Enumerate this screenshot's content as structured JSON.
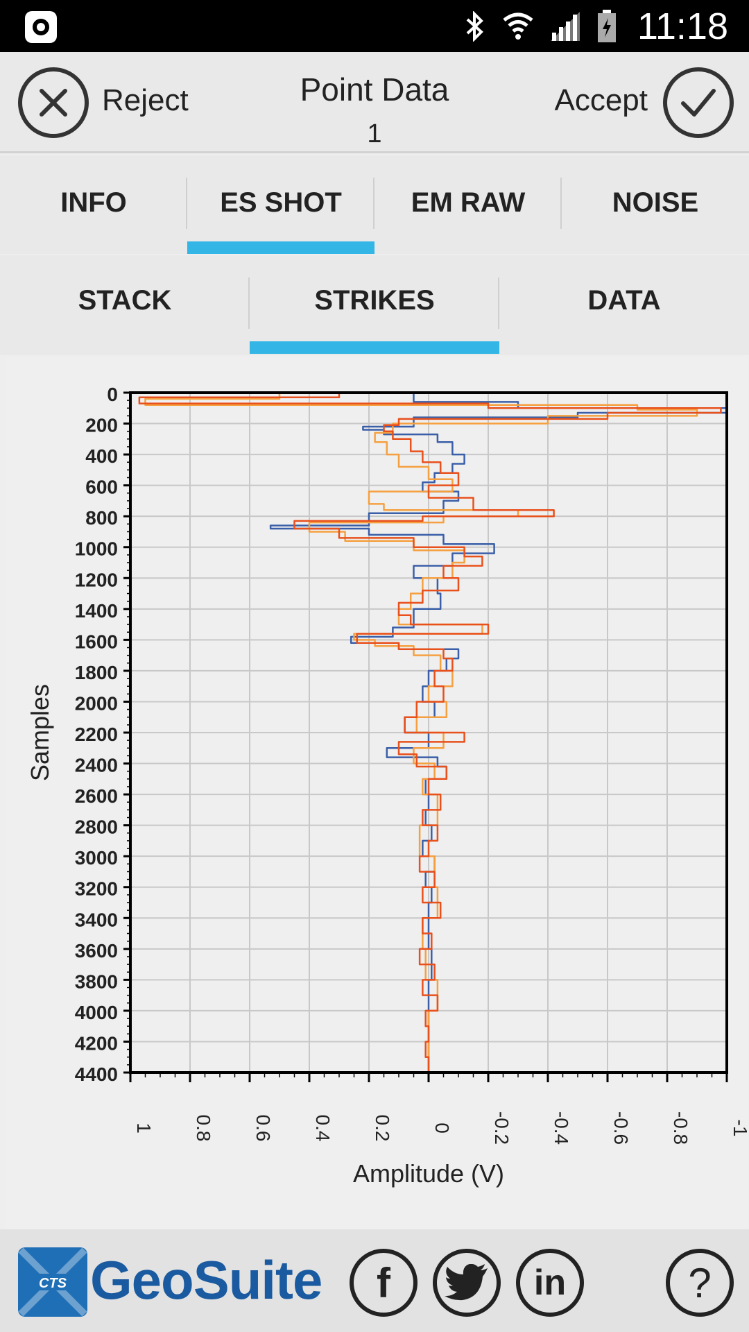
{
  "status_bar": {
    "time": "11:18",
    "icons": [
      "app-icon",
      "bluetooth-icon",
      "wifi-icon",
      "signal-icon",
      "battery-icon"
    ]
  },
  "header": {
    "reject_label": "Reject",
    "title": "Point Data",
    "subtitle": "1",
    "accept_label": "Accept"
  },
  "tabs_primary": [
    {
      "label": "INFO",
      "active": false
    },
    {
      "label": "ES SHOT",
      "active": true
    },
    {
      "label": "EM RAW",
      "active": false
    },
    {
      "label": "NOISE",
      "active": false
    }
  ],
  "tabs_secondary": [
    {
      "label": "STACK",
      "active": false
    },
    {
      "label": "STRIKES",
      "active": true
    },
    {
      "label": "DATA",
      "active": false
    }
  ],
  "chart_data": {
    "type": "line",
    "orientation": "vertical-samples",
    "title": "",
    "xlabel": "Amplitude (V)",
    "ylabel": "Samples",
    "xlim": [
      1,
      -1
    ],
    "ylim": [
      0,
      4400
    ],
    "x_ticks": [
      "1",
      "0.8",
      "0.6",
      "0.4",
      "0.2",
      "0",
      "-0.2",
      "-0.4",
      "-0.6",
      "-0.8",
      "-1"
    ],
    "y_ticks": [
      "0",
      "200",
      "400",
      "600",
      "800",
      "1000",
      "1200",
      "1400",
      "1600",
      "1800",
      "2000",
      "2200",
      "2400",
      "2600",
      "2800",
      "3000",
      "3200",
      "3400",
      "3600",
      "3800",
      "4000",
      "4200",
      "4400"
    ],
    "grid": true,
    "series": [
      {
        "color": "#3a5fa8",
        "samples": [
          0,
          60,
          100,
          130,
          160,
          220,
          240,
          270,
          320,
          400,
          460,
          520,
          580,
          640,
          700,
          780,
          860,
          880,
          920,
          980,
          1040,
          1120,
          1200,
          1300,
          1400,
          1520,
          1580,
          1620,
          1660,
          1720,
          1800,
          1900,
          2000,
          2100,
          2200,
          2300,
          2360,
          2420,
          2500,
          2600,
          2700,
          2800,
          2900,
          3000,
          3100,
          3200,
          3300,
          3400,
          3600,
          3800,
          4000,
          4200,
          4400
        ],
        "values": [
          0.0,
          0.05,
          -0.3,
          -1.0,
          -0.5,
          0.05,
          0.22,
          0.15,
          -0.03,
          -0.08,
          -0.12,
          -0.08,
          -0.02,
          0.02,
          -0.1,
          -0.05,
          0.2,
          0.53,
          0.2,
          -0.05,
          -0.22,
          -0.08,
          0.05,
          -0.03,
          -0.04,
          0.05,
          0.12,
          0.26,
          0.1,
          -0.1,
          -0.06,
          0.0,
          0.02,
          -0.02,
          0.08,
          0.0,
          0.14,
          -0.03,
          -0.06,
          0.01,
          0.0,
          0.01,
          -0.01,
          0.02,
          -0.02,
          0.01,
          -0.01,
          0.0,
          0.0,
          -0.01,
          0.0,
          0.0,
          0.0
        ]
      },
      {
        "color": "#f5a040",
        "samples": [
          0,
          40,
          80,
          110,
          150,
          200,
          260,
          320,
          400,
          480,
          560,
          640,
          720,
          760,
          800,
          840,
          900,
          960,
          1020,
          1100,
          1200,
          1300,
          1400,
          1500,
          1560,
          1600,
          1640,
          1700,
          1800,
          1900,
          2000,
          2100,
          2200,
          2300,
          2400,
          2500,
          2600,
          2800,
          3000,
          3200,
          3400,
          3600,
          3800,
          4000,
          4200,
          4400
        ],
        "values": [
          -0.2,
          0.5,
          0.95,
          -0.7,
          -0.9,
          -0.4,
          0.12,
          0.18,
          0.14,
          0.1,
          0.0,
          -0.08,
          0.2,
          0.15,
          -0.3,
          -0.05,
          0.4,
          0.28,
          0.05,
          -0.12,
          -0.08,
          0.02,
          0.06,
          0.1,
          -0.18,
          0.25,
          0.18,
          0.05,
          -0.04,
          -0.08,
          0.0,
          -0.06,
          0.04,
          -0.05,
          0.05,
          -0.02,
          0.02,
          -0.03,
          0.03,
          -0.02,
          -0.03,
          0.02,
          0.01,
          -0.03,
          0.0,
          0.0
        ]
      },
      {
        "color": "#e8501c",
        "samples": [
          0,
          30,
          70,
          100,
          130,
          170,
          210,
          250,
          300,
          380,
          450,
          520,
          600,
          680,
          760,
          800,
          830,
          880,
          940,
          1000,
          1060,
          1120,
          1200,
          1280,
          1360,
          1440,
          1500,
          1560,
          1620,
          1660,
          1720,
          1800,
          1900,
          2000,
          2100,
          2200,
          2260,
          2340,
          2420,
          2500,
          2600,
          2700,
          2800,
          2900,
          3000,
          3100,
          3200,
          3300,
          3400,
          3500,
          3600,
          3700,
          3800,
          3900,
          4000,
          4100,
          4200,
          4300,
          4400
        ],
        "values": [
          -0.55,
          0.3,
          0.97,
          -0.2,
          -0.98,
          -0.6,
          0.1,
          0.15,
          0.12,
          0.06,
          0.02,
          -0.04,
          -0.1,
          0.0,
          -0.15,
          -0.42,
          0.02,
          0.45,
          0.3,
          0.05,
          -0.12,
          -0.18,
          -0.05,
          -0.1,
          0.02,
          0.1,
          0.06,
          -0.2,
          0.24,
          0.1,
          -0.05,
          -0.08,
          -0.02,
          -0.05,
          0.04,
          0.08,
          -0.12,
          0.1,
          0.04,
          -0.06,
          0.0,
          -0.04,
          0.02,
          -0.03,
          0.0,
          0.03,
          -0.02,
          0.02,
          -0.04,
          0.02,
          -0.01,
          0.03,
          -0.02,
          0.02,
          -0.03,
          0.01,
          0.0,
          0.01,
          0.0
        ]
      }
    ]
  },
  "footer": {
    "logo_box_text": "CTS",
    "logo_text": "GeoSuite",
    "facebook_glyph": "f",
    "linkedin_glyph": "in",
    "help_glyph": "?"
  }
}
